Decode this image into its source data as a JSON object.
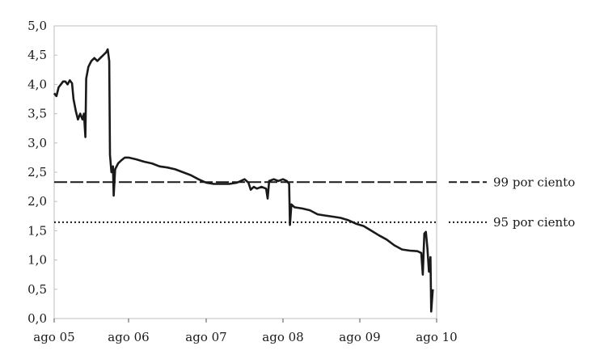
{
  "chart_data": {
    "type": "line",
    "title": "",
    "xlabel": "",
    "ylabel": "",
    "ylim": [
      0,
      5
    ],
    "yticks": [
      "0,0",
      "0,5",
      "1,0",
      "1,5",
      "2,0",
      "2,5",
      "3,0",
      "3,5",
      "4,0",
      "4,5",
      "5,0"
    ],
    "xlim": [
      0,
      5
    ],
    "xticks": [
      {
        "label": "ago 05",
        "value": 0
      },
      {
        "label": "ago 06",
        "value": 1
      },
      {
        "label": "ago 07",
        "value": 2
      },
      {
        "label": "ago 08",
        "value": 3
      },
      {
        "label": "ago 09",
        "value": 4
      },
      {
        "label": "ago 10",
        "value": 5
      }
    ],
    "grid": false,
    "series": [
      {
        "color": "#1a1a1a",
        "points": [
          [
            0.0,
            3.85
          ],
          [
            0.03,
            3.8
          ],
          [
            0.06,
            3.95
          ],
          [
            0.09,
            4.0
          ],
          [
            0.12,
            4.05
          ],
          [
            0.15,
            4.05
          ],
          [
            0.18,
            4.0
          ],
          [
            0.21,
            4.07
          ],
          [
            0.24,
            4.02
          ],
          [
            0.26,
            3.75
          ],
          [
            0.29,
            3.55
          ],
          [
            0.32,
            3.4
          ],
          [
            0.35,
            3.5
          ],
          [
            0.38,
            3.4
          ],
          [
            0.4,
            3.5
          ],
          [
            0.42,
            3.1
          ],
          [
            0.43,
            4.1
          ],
          [
            0.46,
            4.3
          ],
          [
            0.5,
            4.4
          ],
          [
            0.54,
            4.45
          ],
          [
            0.58,
            4.4
          ],
          [
            0.62,
            4.45
          ],
          [
            0.66,
            4.5
          ],
          [
            0.7,
            4.55
          ],
          [
            0.72,
            4.6
          ],
          [
            0.74,
            4.4
          ],
          [
            0.75,
            2.8
          ],
          [
            0.77,
            2.5
          ],
          [
            0.79,
            2.6
          ],
          [
            0.8,
            2.1
          ],
          [
            0.82,
            2.55
          ],
          [
            0.86,
            2.65
          ],
          [
            0.9,
            2.7
          ],
          [
            0.95,
            2.75
          ],
          [
            1.0,
            2.75
          ],
          [
            1.1,
            2.72
          ],
          [
            1.2,
            2.68
          ],
          [
            1.3,
            2.65
          ],
          [
            1.4,
            2.6
          ],
          [
            1.5,
            2.58
          ],
          [
            1.6,
            2.55
          ],
          [
            1.7,
            2.5
          ],
          [
            1.8,
            2.45
          ],
          [
            1.9,
            2.38
          ],
          [
            2.0,
            2.32
          ],
          [
            2.1,
            2.3
          ],
          [
            2.2,
            2.3
          ],
          [
            2.3,
            2.3
          ],
          [
            2.4,
            2.32
          ],
          [
            2.5,
            2.38
          ],
          [
            2.55,
            2.32
          ],
          [
            2.58,
            2.2
          ],
          [
            2.62,
            2.25
          ],
          [
            2.66,
            2.22
          ],
          [
            2.72,
            2.25
          ],
          [
            2.78,
            2.22
          ],
          [
            2.8,
            2.05
          ],
          [
            2.82,
            2.35
          ],
          [
            2.88,
            2.38
          ],
          [
            2.94,
            2.35
          ],
          [
            3.0,
            2.38
          ],
          [
            3.05,
            2.35
          ],
          [
            3.08,
            2.3
          ],
          [
            3.09,
            1.6
          ],
          [
            3.11,
            1.95
          ],
          [
            3.15,
            1.9
          ],
          [
            3.25,
            1.88
          ],
          [
            3.35,
            1.85
          ],
          [
            3.45,
            1.78
          ],
          [
            3.55,
            1.76
          ],
          [
            3.65,
            1.74
          ],
          [
            3.75,
            1.72
          ],
          [
            3.85,
            1.68
          ],
          [
            3.95,
            1.62
          ],
          [
            4.05,
            1.58
          ],
          [
            4.15,
            1.5
          ],
          [
            4.25,
            1.42
          ],
          [
            4.35,
            1.35
          ],
          [
            4.45,
            1.25
          ],
          [
            4.55,
            1.18
          ],
          [
            4.65,
            1.16
          ],
          [
            4.75,
            1.15
          ],
          [
            4.8,
            1.12
          ],
          [
            4.82,
            0.75
          ],
          [
            4.84,
            1.45
          ],
          [
            4.86,
            1.48
          ],
          [
            4.88,
            1.2
          ],
          [
            4.9,
            0.8
          ],
          [
            4.92,
            1.05
          ],
          [
            4.93,
            0.12
          ],
          [
            4.95,
            0.5
          ]
        ]
      }
    ],
    "reference_lines": [
      {
        "value": 2.33,
        "style": "dashed",
        "label": "99 por ciento"
      },
      {
        "value": 1.645,
        "style": "dotted",
        "label": "95 por ciento"
      }
    ]
  }
}
